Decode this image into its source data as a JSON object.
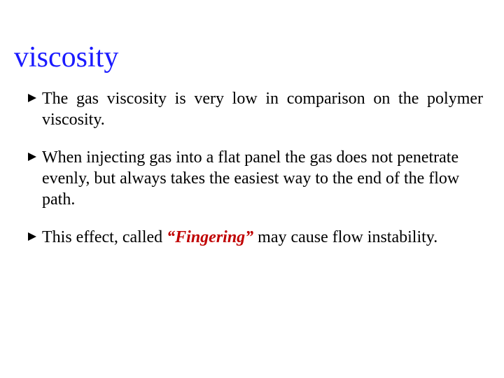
{
  "title": {
    "text": "viscosity",
    "color": "#1a1aff",
    "fontsize": 42
  },
  "text_color": "#000000",
  "bullet_color": "#000000",
  "bullet_fontsize": 24,
  "keyword": {
    "text": "“Fingering”",
    "color": "#c00000"
  },
  "bullets": {
    "items": [
      {
        "text": "The gas viscosity is very low in comparison on the polymer viscosity.",
        "justify": true
      },
      {
        "text": "When injecting gas into a flat panel  the gas does not penetrate evenly, but always takes the easiest way to the end of the flow path.",
        "justify": false
      },
      {
        "pre": "This effect, called ",
        "post": " may cause flow instability.",
        "justify": true,
        "has_keyword": true
      }
    ]
  },
  "arrow_svg": {
    "width": 16,
    "height": 16,
    "fill": "#000000"
  }
}
